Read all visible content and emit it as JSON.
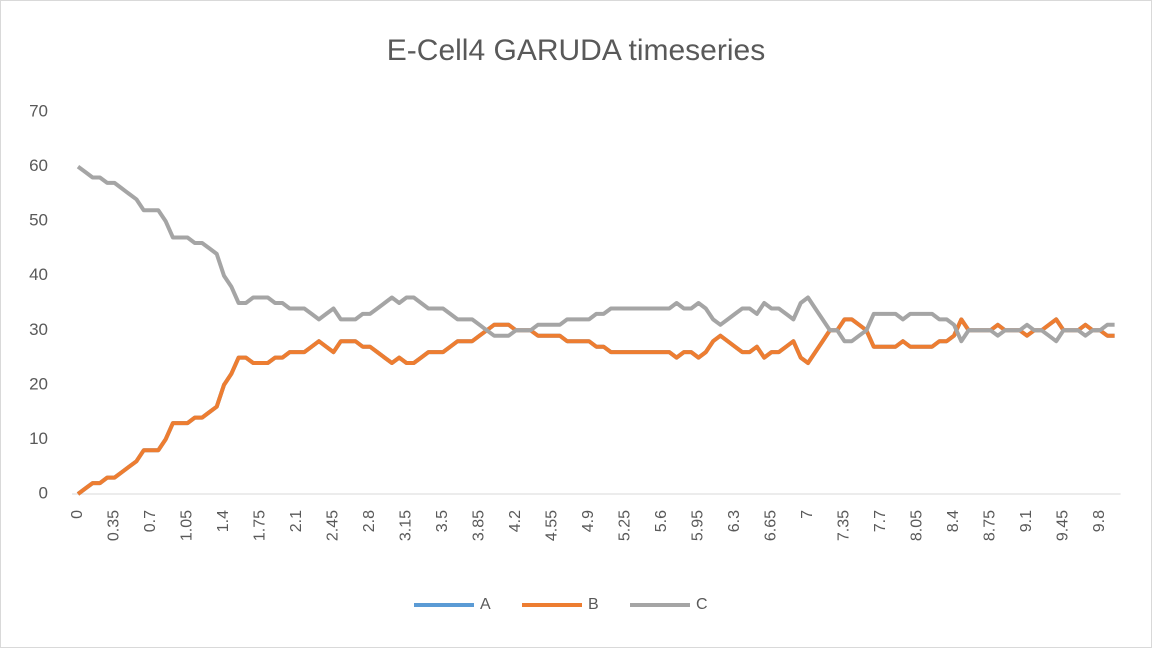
{
  "chart_data": {
    "type": "line",
    "title": "E-Cell4 GARUDA timeseries",
    "categories": [
      0,
      null,
      null,
      null,
      null,
      0.35,
      null,
      null,
      null,
      null,
      0.7,
      null,
      null,
      null,
      null,
      1.05,
      null,
      null,
      null,
      null,
      1.4,
      null,
      null,
      null,
      null,
      1.75,
      null,
      null,
      null,
      null,
      2.1,
      null,
      null,
      null,
      null,
      2.45,
      null,
      null,
      null,
      null,
      2.8,
      null,
      null,
      null,
      null,
      3.15,
      null,
      null,
      null,
      null,
      3.5,
      null,
      null,
      null,
      null,
      3.85,
      null,
      null,
      null,
      null,
      4.2,
      null,
      null,
      null,
      null,
      4.55,
      null,
      null,
      null,
      null,
      4.9,
      null,
      null,
      null,
      null,
      5.25,
      null,
      null,
      null,
      null,
      5.6,
      null,
      null,
      null,
      null,
      5.95,
      null,
      null,
      null,
      null,
      6.3,
      null,
      null,
      null,
      null,
      6.65,
      null,
      null,
      null,
      null,
      7,
      null,
      null,
      null,
      null,
      7.35,
      null,
      null,
      null,
      null,
      7.7,
      null,
      null,
      null,
      null,
      8.05,
      null,
      null,
      null,
      null,
      8.4,
      null,
      null,
      null,
      null,
      8.75,
      null,
      null,
      null,
      null,
      9.1,
      null,
      null,
      null,
      null,
      9.45,
      null,
      null,
      null,
      null,
      9.8,
      null,
      null
    ],
    "series": [
      {
        "name": "A",
        "color": "#5b9bd5",
        "values": [
          0,
          1,
          2,
          2,
          3,
          3,
          4,
          5,
          6,
          8,
          8,
          8,
          10,
          13,
          13,
          13,
          14,
          14,
          15,
          16,
          20,
          22,
          25,
          25,
          24,
          24,
          24,
          25,
          25,
          26,
          26,
          26,
          27,
          28,
          27,
          26,
          28,
          28,
          28,
          27,
          27,
          26,
          25,
          24,
          25,
          24,
          24,
          25,
          26,
          26,
          26,
          27,
          28,
          28,
          28,
          29,
          30,
          31,
          31,
          31,
          30,
          30,
          30,
          29,
          29,
          29,
          29,
          28,
          28,
          28,
          28,
          27,
          27,
          26,
          26,
          26,
          26,
          26,
          26,
          26,
          26,
          26,
          25,
          26,
          26,
          25,
          26,
          28,
          29,
          28,
          27,
          26,
          26,
          27,
          25,
          26,
          26,
          27,
          28,
          25,
          24,
          26,
          28,
          30,
          30,
          32,
          32,
          31,
          30,
          27,
          27,
          27,
          27,
          28,
          27,
          27,
          27,
          27,
          28,
          28,
          29,
          32,
          30,
          30,
          30,
          30,
          31,
          30,
          30,
          30,
          29,
          30,
          30,
          31,
          32,
          30,
          30,
          30,
          31,
          30,
          30,
          29,
          29
        ]
      },
      {
        "name": "B",
        "color": "#ed7d31",
        "values": [
          0,
          1,
          2,
          2,
          3,
          3,
          4,
          5,
          6,
          8,
          8,
          8,
          10,
          13,
          13,
          13,
          14,
          14,
          15,
          16,
          20,
          22,
          25,
          25,
          24,
          24,
          24,
          25,
          25,
          26,
          26,
          26,
          27,
          28,
          27,
          26,
          28,
          28,
          28,
          27,
          27,
          26,
          25,
          24,
          25,
          24,
          24,
          25,
          26,
          26,
          26,
          27,
          28,
          28,
          28,
          29,
          30,
          31,
          31,
          31,
          30,
          30,
          30,
          29,
          29,
          29,
          29,
          28,
          28,
          28,
          28,
          27,
          27,
          26,
          26,
          26,
          26,
          26,
          26,
          26,
          26,
          26,
          25,
          26,
          26,
          25,
          26,
          28,
          29,
          28,
          27,
          26,
          26,
          27,
          25,
          26,
          26,
          27,
          28,
          25,
          24,
          26,
          28,
          30,
          30,
          32,
          32,
          31,
          30,
          27,
          27,
          27,
          27,
          28,
          27,
          27,
          27,
          27,
          28,
          28,
          29,
          32,
          30,
          30,
          30,
          30,
          31,
          30,
          30,
          30,
          29,
          30,
          30,
          31,
          32,
          30,
          30,
          30,
          31,
          30,
          30,
          29,
          29
        ]
      },
      {
        "name": "C",
        "color": "#a5a5a5",
        "values": [
          60,
          59,
          58,
          58,
          57,
          57,
          56,
          55,
          54,
          52,
          52,
          52,
          50,
          47,
          47,
          47,
          46,
          46,
          45,
          44,
          40,
          38,
          35,
          35,
          36,
          36,
          36,
          35,
          35,
          34,
          34,
          34,
          33,
          32,
          33,
          34,
          32,
          32,
          32,
          33,
          33,
          34,
          35,
          36,
          35,
          36,
          36,
          35,
          34,
          34,
          34,
          33,
          32,
          32,
          32,
          31,
          30,
          29,
          29,
          29,
          30,
          30,
          30,
          31,
          31,
          31,
          31,
          32,
          32,
          32,
          32,
          33,
          33,
          34,
          34,
          34,
          34,
          34,
          34,
          34,
          34,
          34,
          35,
          34,
          34,
          35,
          34,
          32,
          31,
          32,
          33,
          34,
          34,
          33,
          35,
          34,
          34,
          33,
          32,
          35,
          36,
          34,
          32,
          30,
          30,
          28,
          28,
          29,
          30,
          33,
          33,
          33,
          33,
          32,
          33,
          33,
          33,
          33,
          32,
          32,
          31,
          28,
          30,
          30,
          30,
          30,
          29,
          30,
          30,
          30,
          31,
          30,
          30,
          29,
          28,
          30,
          30,
          30,
          29,
          30,
          30,
          31,
          31
        ]
      }
    ],
    "ylim": [
      0,
      70
    ],
    "yticks": [
      0,
      10,
      20,
      30,
      40,
      50,
      60,
      70
    ],
    "grid": false,
    "legend": "bottom"
  }
}
